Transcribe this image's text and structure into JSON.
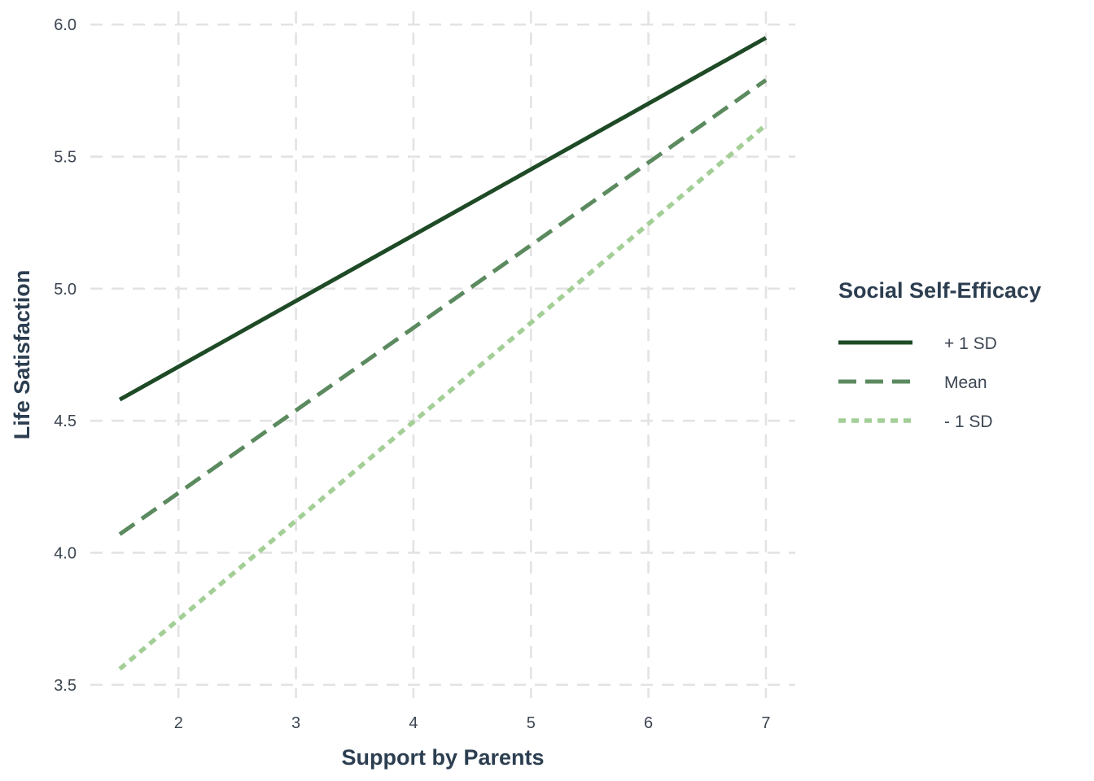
{
  "chart_data": {
    "type": "line",
    "xlabel": "Support by Parents",
    "ylabel": "Life Satisfaction",
    "xlim": [
      1.25,
      7.25
    ],
    "ylim": [
      3.45,
      6.05
    ],
    "xticks": [
      2,
      3,
      4,
      5,
      6,
      7
    ],
    "xtick_labels": [
      "2",
      "3",
      "4",
      "5",
      "6",
      "7"
    ],
    "yticks": [
      3.5,
      4.0,
      4.5,
      5.0,
      5.5,
      6.0
    ],
    "ytick_labels": [
      "3.5",
      "4.0",
      "4.5",
      "5.0",
      "5.5",
      "6.0"
    ],
    "grid": true,
    "grid_style": "dashed",
    "legend": {
      "title": "Social Self-Efficacy",
      "placement": "right"
    },
    "series": [
      {
        "name": "+ 1 SD",
        "color": "#1e4a26",
        "dash": "solid",
        "x": [
          1.5,
          7
        ],
        "y": [
          4.58,
          5.95
        ]
      },
      {
        "name": "Mean",
        "color": "#5b8a5f",
        "dash": "dashed",
        "x": [
          1.5,
          7
        ],
        "y": [
          4.07,
          5.79
        ]
      },
      {
        "name": "- 1 SD",
        "color": "#a3cf97",
        "dash": "dotted",
        "x": [
          1.5,
          7
        ],
        "y": [
          3.56,
          5.62
        ]
      }
    ]
  }
}
